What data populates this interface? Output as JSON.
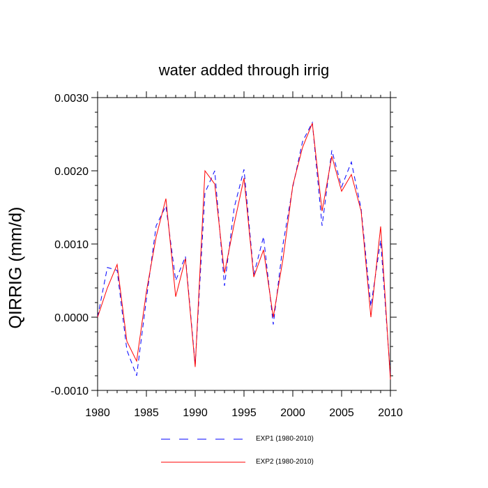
{
  "chart_data": {
    "type": "line",
    "title": "water added through irrig",
    "xlabel": "",
    "ylabel": "QIRRIG  (mm/d)",
    "xlim": [
      1980,
      2010
    ],
    "ylim": [
      -0.001,
      0.003
    ],
    "x_ticks": [
      1980,
      1985,
      1990,
      1995,
      2000,
      2005,
      2010
    ],
    "x_tick_labels": [
      "1980",
      "1985",
      "1990",
      "1995",
      "2000",
      "2005",
      "2010"
    ],
    "y_ticks": [
      -0.001,
      0.0,
      0.001,
      0.002,
      0.003
    ],
    "y_tick_labels": [
      "-0.0010",
      "0.0000",
      "0.0010",
      "0.0020",
      "0.0030"
    ],
    "grid": false,
    "legend_position": "bottom-center",
    "x": [
      1980,
      1981,
      1982,
      1983,
      1984,
      1985,
      1986,
      1987,
      1988,
      1989,
      1990,
      1991,
      1992,
      1993,
      1994,
      1995,
      1996,
      1997,
      1998,
      1999,
      2000,
      2001,
      2002,
      2003,
      2004,
      2005,
      2006,
      2007,
      2008,
      2009,
      2010
    ],
    "series": [
      {
        "name": "EXP1 (1980-2010)",
        "color": "#0000ff",
        "style": "dashed",
        "values": [
          0.0,
          0.00068,
          0.00064,
          -0.00045,
          -0.0008,
          0.00025,
          0.00125,
          0.00152,
          0.0005,
          0.00083,
          -0.00065,
          0.0017,
          0.002,
          0.00043,
          0.0015,
          0.00202,
          0.00058,
          0.0011,
          -0.0001,
          0.001,
          0.00178,
          0.0024,
          0.00266,
          0.00125,
          0.00228,
          0.00178,
          0.00212,
          0.00148,
          0.00015,
          0.00105,
          -0.0008
        ]
      },
      {
        "name": "EXP2 (1980-2010)",
        "color": "#ff0000",
        "style": "solid",
        "values": [
          0.0,
          0.0004,
          0.00072,
          -0.00033,
          -0.0006,
          0.00035,
          0.0011,
          0.00162,
          0.00028,
          0.0008,
          -0.00068,
          0.002,
          0.00182,
          0.0006,
          0.00128,
          0.0019,
          0.00055,
          0.00092,
          0.0,
          0.0008,
          0.0018,
          0.00232,
          0.00265,
          0.00145,
          0.0022,
          0.00172,
          0.00195,
          0.00145,
          0.0,
          0.00124,
          -0.00085
        ]
      }
    ]
  }
}
